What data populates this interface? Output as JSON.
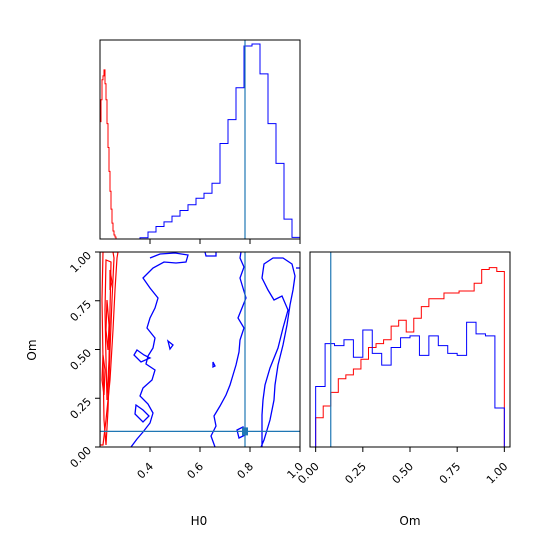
{
  "colors": {
    "series_a": "#ff0000",
    "series_b": "#0000ff",
    "truth": "#1f77b4",
    "frame": "#000000"
  },
  "chart_data": [
    {
      "id": "hist-H0",
      "type": "histogram",
      "param": "H0",
      "xlim": [
        0.2,
        1.0
      ],
      "truth": 0.78,
      "ticks": [
        0.4,
        0.6,
        0.8,
        1.0
      ],
      "series": [
        {
          "color_key": "series_a",
          "bins": [
            0.2,
            0.204,
            0.208,
            0.212,
            0.216,
            0.22,
            0.224,
            0.228,
            0.232,
            0.236,
            0.24,
            0.244,
            0.248,
            0.252,
            0.256,
            0.26,
            0.264,
            0.268,
            0.272,
            0.276,
            0.28,
            0.284,
            0.288,
            0.292,
            0.296,
            0.3
          ],
          "counts": [
            0.59,
            0.7,
            0.8,
            0.82,
            0.85,
            0.78,
            0.7,
            0.58,
            0.46,
            0.34,
            0.24,
            0.15,
            0.08,
            0.04,
            0.02,
            0.01,
            0,
            0,
            0,
            0,
            0,
            0,
            0,
            0,
            0
          ]
        },
        {
          "color_key": "series_b",
          "bins": [
            0.2,
            0.232,
            0.264,
            0.296,
            0.328,
            0.36,
            0.392,
            0.424,
            0.456,
            0.488,
            0.52,
            0.552,
            0.584,
            0.616,
            0.648,
            0.68,
            0.712,
            0.744,
            0.776,
            0.808,
            0.84,
            0.872,
            0.904,
            0.936,
            0.968,
            1.0
          ],
          "counts": [
            0,
            0,
            0,
            0,
            0,
            0.006,
            0.035,
            0.063,
            0.086,
            0.115,
            0.143,
            0.172,
            0.205,
            0.23,
            0.28,
            0.48,
            0.6,
            0.76,
            0.97,
            0.98,
            0.83,
            0.58,
            0.38,
            0.1,
            0.008
          ]
        }
      ]
    },
    {
      "id": "contour-H0-Om",
      "type": "contour",
      "xlabel": "H0",
      "ylabel": "Om",
      "xlim": [
        0.2,
        1.0
      ],
      "ylim": [
        0.0,
        1.0
      ],
      "xticks": [
        "0.4",
        "0.6",
        "0.8",
        "1.0"
      ],
      "yticks": [
        "0.00",
        "0.25",
        "0.50",
        "0.75",
        "1.00"
      ],
      "truth": [
        0.78,
        0.08
      ]
    },
    {
      "id": "hist-Om",
      "type": "histogram",
      "param": "Om",
      "xlabel": "Om",
      "xlim": [
        -0.03,
        1.03
      ],
      "truth": 0.08,
      "xticks": [
        "0.00",
        "0.25",
        "0.50",
        "0.75",
        "1.00"
      ],
      "series": [
        {
          "color_key": "series_a",
          "bins": [
            0.0,
            0.04,
            0.08,
            0.12,
            0.16,
            0.2,
            0.24,
            0.28,
            0.32,
            0.36,
            0.4,
            0.44,
            0.48,
            0.52,
            0.56,
            0.6,
            0.64,
            0.68,
            0.72,
            0.76,
            0.8,
            0.84,
            0.88,
            0.92,
            0.96,
            1.0
          ],
          "counts": [
            0.15,
            0.21,
            0.28,
            0.35,
            0.37,
            0.4,
            0.45,
            0.51,
            0.53,
            0.55,
            0.62,
            0.65,
            0.59,
            0.66,
            0.72,
            0.76,
            0.76,
            0.79,
            0.79,
            0.8,
            0.8,
            0.84,
            0.91,
            0.92,
            0.9
          ]
        },
        {
          "color_key": "series_b",
          "bins": [
            0.0,
            0.05,
            0.1,
            0.15,
            0.2,
            0.25,
            0.3,
            0.35,
            0.4,
            0.45,
            0.5,
            0.55,
            0.6,
            0.65,
            0.7,
            0.75,
            0.8,
            0.85,
            0.9,
            0.95,
            1.0
          ],
          "counts": [
            0.31,
            0.53,
            0.52,
            0.55,
            0.46,
            0.6,
            0.48,
            0.42,
            0.51,
            0.56,
            0.57,
            0.47,
            0.57,
            0.52,
            0.48,
            0.47,
            0.64,
            0.58,
            0.57,
            0.2
          ]
        }
      ]
    }
  ]
}
